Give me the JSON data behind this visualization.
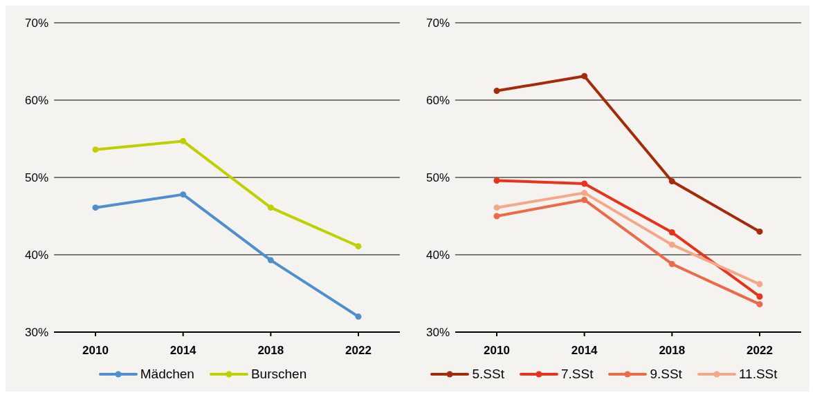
{
  "chart_data": [
    {
      "type": "line",
      "categories": [
        "2010",
        "2014",
        "2018",
        "2022"
      ],
      "ylim": [
        30,
        70
      ],
      "yticks": [
        {
          "value": 30,
          "label": "30%"
        },
        {
          "value": 40,
          "label": "40%"
        },
        {
          "value": 50,
          "label": "50%"
        },
        {
          "value": 60,
          "label": "60%"
        },
        {
          "value": 70,
          "label": "70%"
        }
      ],
      "grid": "y",
      "legend": "bottom",
      "marker": "circle",
      "line_style": "solid",
      "series": [
        {
          "name": "Mädchen",
          "color": "#4f8fce",
          "values": [
            46.1,
            47.8,
            39.3,
            32.0
          ]
        },
        {
          "name": "Burschen",
          "color": "#bfd000",
          "values": [
            53.6,
            54.7,
            46.1,
            41.1
          ]
        }
      ]
    },
    {
      "type": "line",
      "categories": [
        "2010",
        "2014",
        "2018",
        "2022"
      ],
      "ylim": [
        30,
        70
      ],
      "yticks": [
        {
          "value": 30,
          "label": "30%"
        },
        {
          "value": 40,
          "label": "40%"
        },
        {
          "value": 50,
          "label": "50%"
        },
        {
          "value": 60,
          "label": "60%"
        },
        {
          "value": 70,
          "label": "70%"
        }
      ],
      "grid": "y",
      "legend": "bottom",
      "marker": "circle",
      "line_style": "solid",
      "series": [
        {
          "name": "5.SSt",
          "color": "#a52a0a",
          "values": [
            61.2,
            63.1,
            49.5,
            43.0
          ]
        },
        {
          "name": "7.SSt",
          "color": "#e8321a",
          "values": [
            49.6,
            49.2,
            42.9,
            34.6
          ]
        },
        {
          "name": "9.SSt",
          "color": "#ec6a47",
          "values": [
            45.0,
            47.1,
            38.8,
            33.6
          ]
        },
        {
          "name": "11.SSt",
          "color": "#f4a789",
          "values": [
            46.1,
            48.0,
            41.3,
            36.2
          ]
        }
      ]
    }
  ]
}
